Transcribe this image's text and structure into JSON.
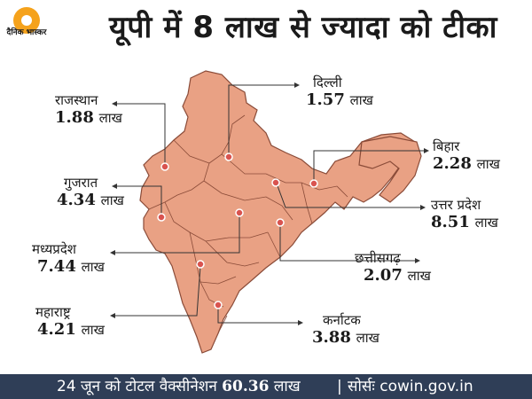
{
  "brand": {
    "name": "दैनिक भास्कर",
    "accent": "#f5a21b"
  },
  "title": "यूपी में 8 लाख से ज्यादा को टीका",
  "colors": {
    "map_fill": "#e9a184",
    "map_border": "#8a4b38",
    "dot": "#d9534f",
    "leader": "#333333",
    "footer_bg": "#2f3e57"
  },
  "states": [
    {
      "name": "राजस्थान",
      "value": "1.88",
      "unit": "लाख"
    },
    {
      "name": "गुजरात",
      "value": "4.34",
      "unit": "लाख"
    },
    {
      "name": "मध्यप्रदेश",
      "value": "7.44",
      "unit": "लाख"
    },
    {
      "name": "महाराष्ट्र",
      "value": "4.21",
      "unit": "लाख"
    },
    {
      "name": "दिल्ली",
      "value": "1.57",
      "unit": "लाख"
    },
    {
      "name": "बिहार",
      "value": "2.28",
      "unit": "लाख"
    },
    {
      "name": "उत्तर प्रदेश",
      "value": "8.51",
      "unit": "लाख"
    },
    {
      "name": "छत्तीसगढ़",
      "value": "2.07",
      "unit": "लाख"
    },
    {
      "name": "कर्नाटक",
      "value": "3.88",
      "unit": "लाख"
    }
  ],
  "footer": {
    "prefix": "24 जून को टोटल वैक्सीनेशन",
    "total": "60.36",
    "unit": "लाख",
    "separator": "|",
    "source_label": "सोर्सः",
    "source": "cowin.gov.in"
  }
}
